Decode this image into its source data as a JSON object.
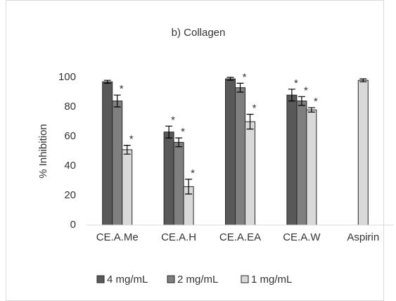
{
  "chart_data": {
    "type": "bar",
    "title": "b) Collagen",
    "y_label": "% Inhibition",
    "categories": [
      "CE.A.Me",
      "CE.A.H",
      "CE.A.EA",
      "CE.A.W",
      "Aspirin"
    ],
    "series": [
      {
        "name": "4 mg/mL",
        "color": "#595959",
        "values": [
          97,
          63,
          99,
          88,
          null
        ],
        "errors": [
          1,
          4,
          1,
          4,
          null
        ],
        "significance": [
          null,
          "*",
          null,
          "*",
          null
        ]
      },
      {
        "name": "2 mg/mL",
        "color": "#7f7f7f",
        "values": [
          84,
          56,
          93,
          84,
          null
        ],
        "errors": [
          4,
          3,
          3,
          3,
          null
        ],
        "significance": [
          "*",
          "*",
          "*",
          "*",
          null
        ]
      },
      {
        "name": "1 mg/mL",
        "color": "#d9d9d9",
        "values": [
          51,
          26,
          70,
          78,
          98
        ],
        "errors": [
          3,
          5,
          5,
          1.5,
          1
        ],
        "significance": [
          "*",
          "*",
          "*",
          "*",
          null
        ]
      }
    ],
    "ylim": [
      0,
      100
    ],
    "yticks": [
      0,
      20,
      40,
      60,
      80,
      100
    ],
    "grid": false,
    "legend": "bottom"
  }
}
